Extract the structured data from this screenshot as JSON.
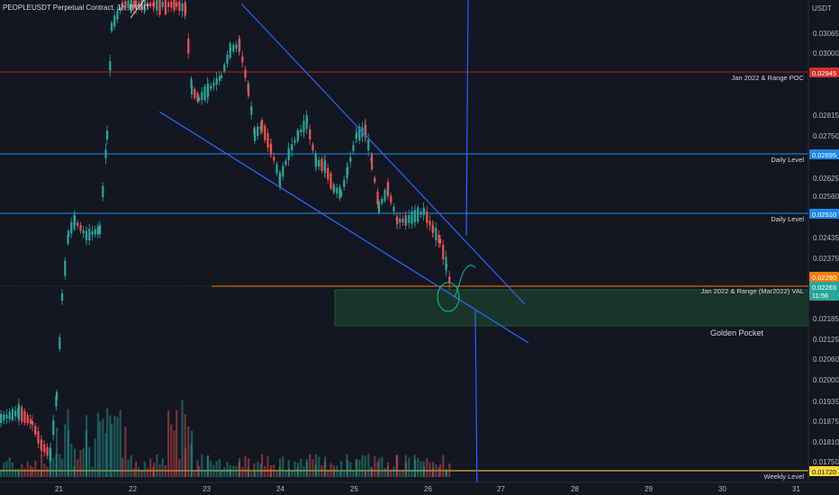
{
  "header": {
    "symbol_label": "PEOPLEUSDT Perpetual Contract, 1h, BYBIT"
  },
  "price_axis": {
    "unit_label": "USDT",
    "ticks": [
      "0.03065",
      "0.03000",
      "0.02815",
      "0.02750",
      "0.02625",
      "0.02560",
      "0.02435",
      "0.02375",
      "0.02185",
      "0.02125",
      "0.02060",
      "0.02000",
      "0.01935",
      "0.01875",
      "0.01810",
      "0.01750"
    ]
  },
  "time_axis": {
    "ticks": [
      "21",
      "22",
      "23",
      "24",
      "25",
      "26",
      "27",
      "28",
      "29",
      "30",
      "31"
    ]
  },
  "levels": [
    {
      "label": "Jan 2022 & Range POC",
      "price": "0.02945",
      "tag_color": "#d32f2f",
      "line_color": "#b71c1c"
    },
    {
      "label": "Daily Level",
      "price": "0.02695",
      "tag_color": "#1e88e5",
      "line_color": "#1e88e5"
    },
    {
      "label": "Daily Level",
      "price": "0.02510",
      "tag_color": "#1e88e5",
      "line_color": "#1e88e5"
    },
    {
      "label": "Jan 2022 & Range (Mar2022) VAL",
      "price": "0.02290",
      "tag_color": "#f57c00",
      "line_color": "#f57c00"
    },
    {
      "label": "Weekly Level",
      "price": "0.01720",
      "tag_color": "#fdd835",
      "line_color": "#fdd835"
    }
  ],
  "current_price": {
    "price": "0.02265",
    "countdown": "11:56",
    "tag_color": "#26a69a"
  },
  "zone": {
    "label": "Golden Pocket",
    "color": "#1b5e20"
  },
  "colors": {
    "up": "#26a69a",
    "down": "#ef5350",
    "trendline": "#2962ff",
    "drawing": "#00bfa5"
  },
  "chart_data": {
    "type": "candlestick",
    "price_range": [
      0.0171,
      0.0312
    ],
    "time_range": [
      "21",
      "31"
    ],
    "trend_channel": "descending wedge",
    "levels": [
      0.02945,
      0.02695,
      0.0251,
      0.0229,
      0.0172
    ],
    "golden_pocket": [
      0.0218,
      0.02275
    ]
  }
}
